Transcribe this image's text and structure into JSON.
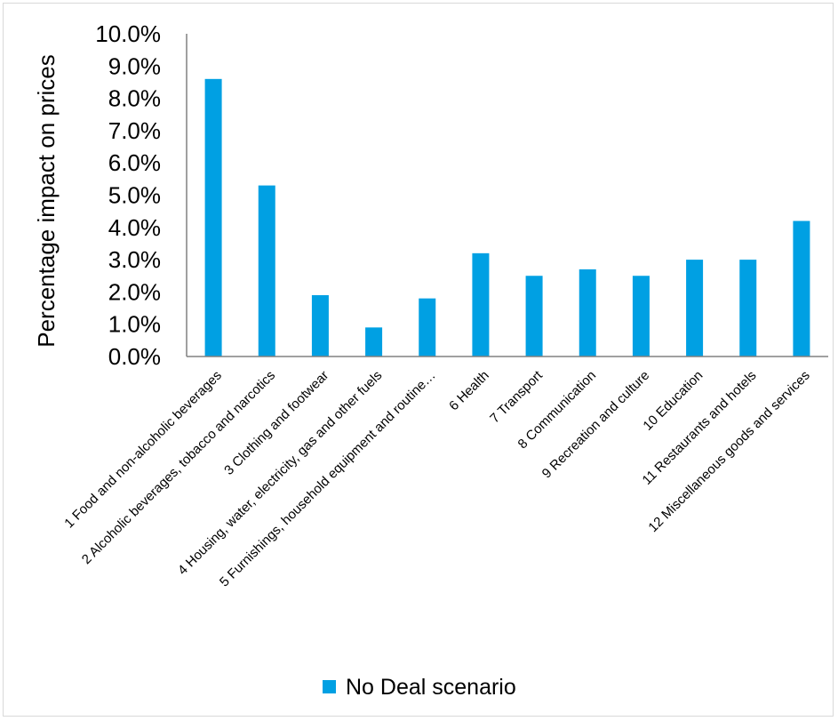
{
  "chart_data": {
    "type": "bar",
    "title": "",
    "xlabel": "",
    "ylabel": "Percentage impact on prices",
    "ylim": [
      0,
      10
    ],
    "yticks": [
      "0.0%",
      "1.0%",
      "2.0%",
      "3.0%",
      "4.0%",
      "5.0%",
      "6.0%",
      "7.0%",
      "8.0%",
      "9.0%",
      "10.0%"
    ],
    "grid": false,
    "legend_position": "bottom",
    "categories": [
      "1 Food and non-alcoholic beverages",
      "2 Alcoholic beverages, tobacco and narcotics",
      "3 Clothing and footwear",
      "4 Housing, water, electricity, gas and other fuels",
      "5 Furnishings, household equipment and routine…",
      "6 Health",
      "7 Transport",
      "8 Communication",
      "9 Recreation and culture",
      "10 Education",
      "11 Restaurants and hotels",
      "12 Miscellaneous goods and services"
    ],
    "series": [
      {
        "name": "No Deal scenario",
        "color": "#00a0e3",
        "values": [
          8.6,
          5.3,
          1.9,
          0.9,
          1.8,
          3.2,
          2.5,
          2.7,
          2.5,
          3.0,
          3.0,
          4.2
        ]
      }
    ]
  }
}
